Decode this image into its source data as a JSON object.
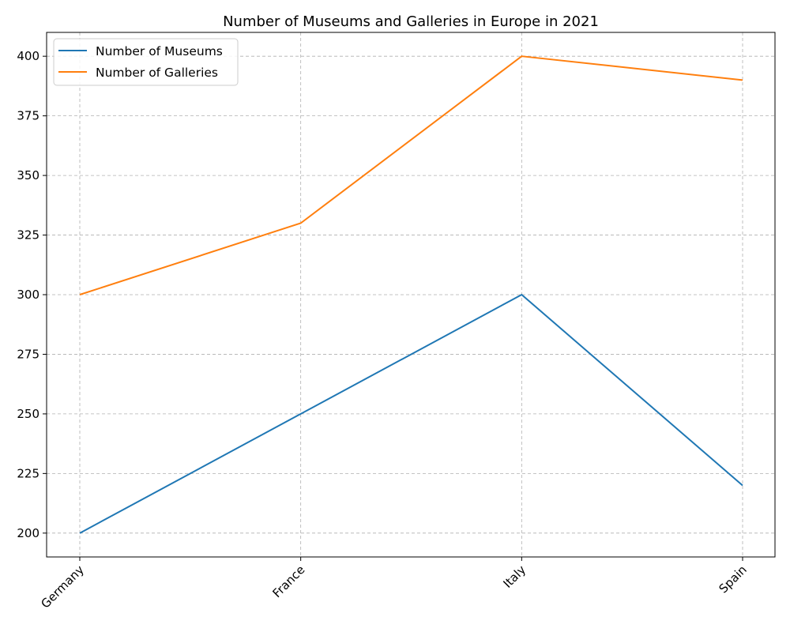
{
  "chart_data": {
    "type": "line",
    "title": "Number of Museums and Galleries in Europe in 2021",
    "xlabel": "",
    "ylabel": "",
    "categories": [
      "Germany",
      "France",
      "Italy",
      "Spain"
    ],
    "series": [
      {
        "name": "Number of Museums",
        "values": [
          200,
          250,
          300,
          220
        ],
        "color": "#1f77b4"
      },
      {
        "name": "Number of Galleries",
        "values": [
          300,
          330,
          400,
          390
        ],
        "color": "#ff7f0e"
      }
    ],
    "ylim": [
      190,
      410
    ],
    "yticks": [
      200,
      225,
      250,
      275,
      300,
      325,
      350,
      375,
      400
    ],
    "ytick_labels": [
      "200",
      "225",
      "250",
      "275",
      "300",
      "325",
      "350",
      "375",
      "400"
    ],
    "grid": true,
    "legend_position": "top-left"
  }
}
